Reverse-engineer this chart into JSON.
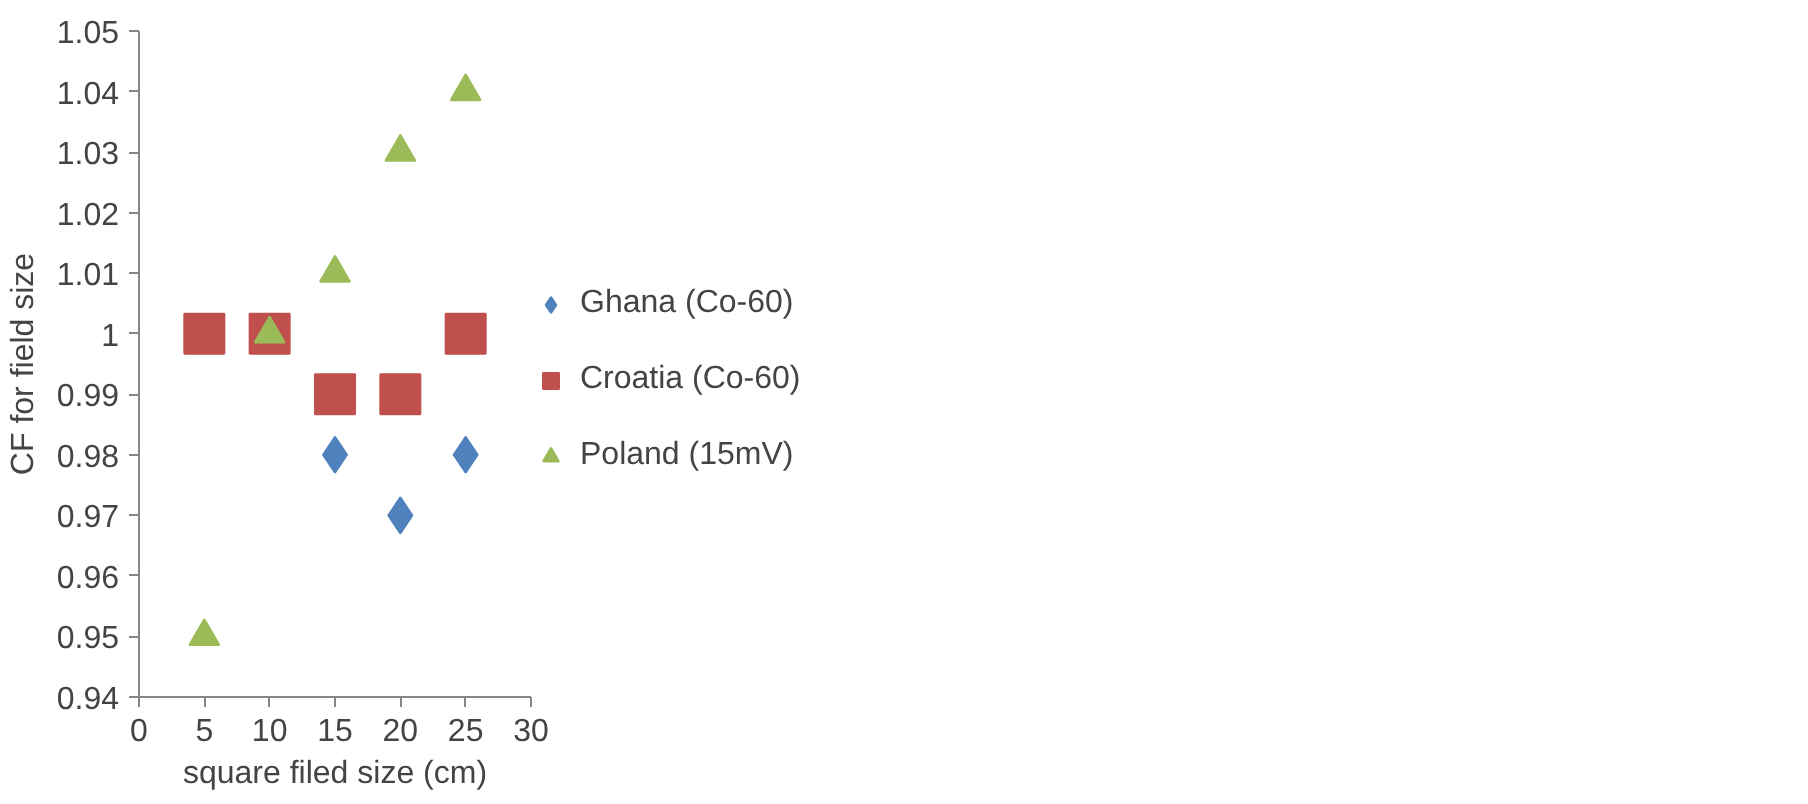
{
  "chart_data": {
    "type": "scatter",
    "xlabel": "square filed size (cm)",
    "ylabel": "CF for field size",
    "xlim": [
      0,
      30
    ],
    "xticks": [
      0,
      5,
      10,
      15,
      20,
      25,
      30
    ],
    "ylim": [
      0.94,
      1.05
    ],
    "yticks": [
      0.94,
      0.95,
      0.96,
      0.97,
      0.98,
      0.99,
      1,
      1.01,
      1.02,
      1.03,
      1.04,
      1.05
    ],
    "grid": false,
    "legend": "right",
    "series": [
      {
        "name": "Ghana (Co-60)",
        "color": "#4f81bd",
        "marker": "diamond",
        "x": [
          15,
          20,
          25
        ],
        "values": [
          0.98,
          0.97,
          0.98
        ]
      },
      {
        "name": "Croatia (Co-60)",
        "color": "#c0504d",
        "marker": "square",
        "x": [
          5,
          10,
          15,
          20,
          25
        ],
        "values": [
          1.0,
          1.0,
          0.99,
          0.99,
          1.0
        ]
      },
      {
        "name": "Poland (15mV)",
        "color": "#9bbb59",
        "marker": "triangle",
        "x": [
          5,
          10,
          15,
          20,
          25
        ],
        "values": [
          0.95,
          1.0,
          1.01,
          1.03,
          1.04
        ]
      }
    ]
  }
}
